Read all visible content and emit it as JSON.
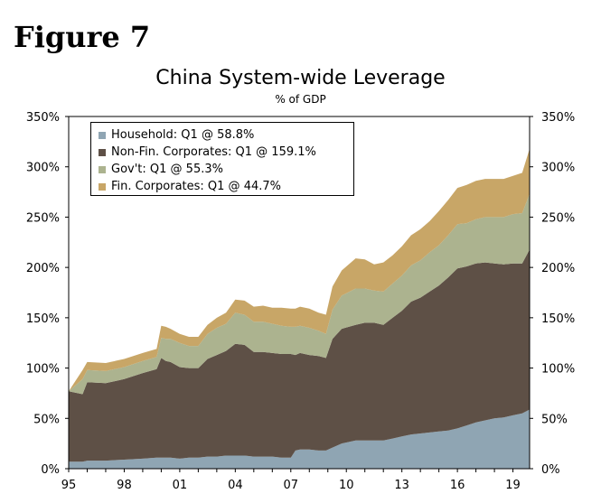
{
  "figure_label": "Figure 7",
  "chart_data": {
    "type": "area",
    "stacked": true,
    "title": "China System-wide Leverage",
    "subtitle": "% of GDP",
    "xlabel": "",
    "ylabel": "",
    "x_range": [
      1995,
      2019.9
    ],
    "x_ticks": [
      "95",
      "98",
      "01",
      "04",
      "07",
      "10",
      "13",
      "16",
      "19"
    ],
    "ylim": [
      0,
      350
    ],
    "y_ticks": [
      "0%",
      "50%",
      "100%",
      "150%",
      "200%",
      "250%",
      "300%",
      "350%"
    ],
    "y_axis_right": true,
    "grid": false,
    "legend_position": "top-left",
    "x": [
      1995.0,
      1995.75,
      1996.0,
      1997.0,
      1998.0,
      1999.0,
      1999.75,
      2000.0,
      2000.25,
      2000.5,
      2001.0,
      2001.5,
      2002.0,
      2002.5,
      2003.0,
      2003.5,
      2004.0,
      2004.5,
      2005.0,
      2005.5,
      2006.0,
      2006.5,
      2007.0,
      2007.25,
      2007.5,
      2008.0,
      2008.5,
      2008.9,
      2009.25,
      2009.75,
      2010.5,
      2011.0,
      2011.5,
      2012.0,
      2012.5,
      2013.0,
      2013.5,
      2014.0,
      2014.5,
      2015.0,
      2015.5,
      2016.0,
      2016.5,
      2017.0,
      2017.5,
      2018.0,
      2018.5,
      2019.0,
      2019.5,
      2019.9
    ],
    "series": [
      {
        "name": "Household: Q1 @ 58.8%",
        "color": "#8fa5b3",
        "values": [
          7,
          7,
          8,
          8,
          9,
          10,
          11,
          11,
          11,
          11,
          10,
          11,
          11,
          12,
          12,
          13,
          13,
          13,
          12,
          12,
          12,
          11,
          11,
          18,
          19,
          19,
          18,
          18,
          21,
          25,
          28,
          28,
          28,
          28,
          30,
          32,
          34,
          35,
          36,
          37,
          38,
          40,
          43,
          46,
          48,
          50,
          51,
          53,
          55,
          58.8
        ]
      },
      {
        "name": "Non-Fin. Corporates: Q1 @ 159.1%",
        "color": "#5e5046",
        "values": [
          70,
          67,
          78,
          77,
          80,
          85,
          88,
          99,
          96,
          95,
          91,
          89,
          89,
          97,
          101,
          104,
          111,
          110,
          104,
          104,
          103,
          103,
          103,
          95,
          96,
          94,
          94,
          92,
          108,
          114,
          115,
          117,
          117,
          115,
          120,
          125,
          132,
          135,
          140,
          145,
          152,
          159,
          158,
          158,
          157,
          154,
          152,
          151,
          149,
          159.1
        ]
      },
      {
        "name": "Gov't: Q1 @ 55.3%",
        "color": "#acb38f",
        "values": [
          0,
          15,
          12,
          12,
          12,
          12,
          12,
          20,
          22,
          23,
          24,
          22,
          22,
          25,
          27,
          27,
          31,
          30,
          30,
          30,
          29,
          28,
          27,
          28,
          27,
          27,
          25,
          24,
          29,
          33,
          36,
          34,
          32,
          33,
          34,
          35,
          36,
          37,
          39,
          40,
          42,
          44,
          43,
          44,
          45,
          46,
          47,
          49,
          50,
          55.3
        ]
      },
      {
        "name": "Fin. Corporates: Q1 @ 44.7%",
        "color": "#c8a667",
        "values": [
          0,
          9,
          8,
          8,
          8,
          8,
          8,
          12,
          12,
          10,
          9,
          9,
          9,
          9,
          10,
          11,
          13,
          14,
          15,
          16,
          16,
          18,
          18,
          18,
          19,
          19,
          18,
          19,
          23,
          25,
          30,
          29,
          26,
          29,
          28,
          29,
          30,
          31,
          31,
          34,
          35,
          36,
          38,
          38,
          38,
          38,
          38,
          38,
          40,
          44.7
        ]
      }
    ]
  }
}
